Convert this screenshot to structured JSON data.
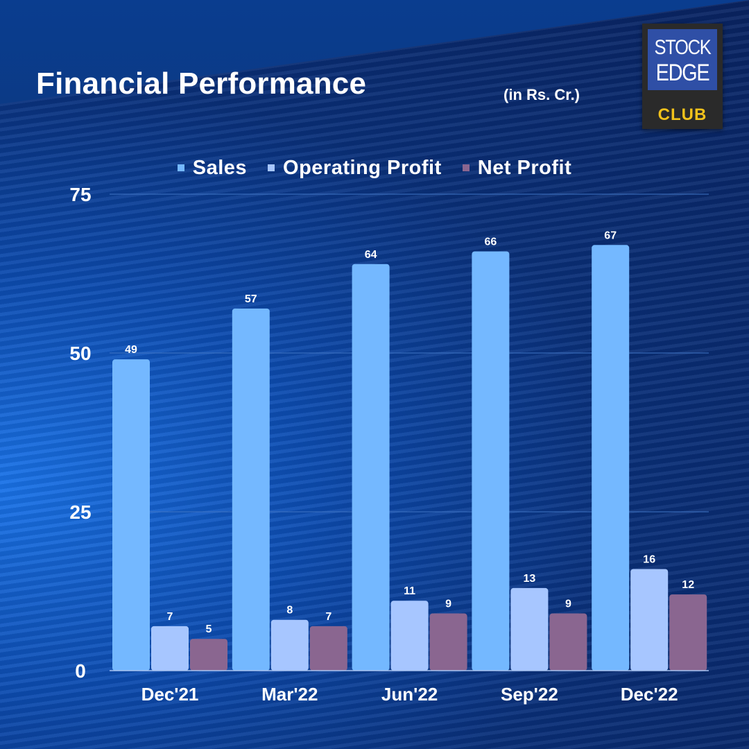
{
  "title": "Financial Performance",
  "unit_note": "(in Rs. Cr.)",
  "logo": {
    "line1": "STOCK",
    "line2": "EDGE",
    "line3": "CLUB"
  },
  "colors": {
    "sales": "#74b8ff",
    "operating_profit": "#a7c6ff",
    "net_profit": "#8a6690",
    "grid": "#3f74c4",
    "axis": "#a9c4f0"
  },
  "chart_data": {
    "type": "bar",
    "title": "Financial Performance",
    "xlabel": "",
    "ylabel": "",
    "categories": [
      "Dec'21",
      "Mar'22",
      "Jun'22",
      "Sep'22",
      "Dec'22"
    ],
    "series": [
      {
        "name": "Sales",
        "color_key": "sales",
        "values": [
          49,
          57,
          64,
          66,
          67
        ]
      },
      {
        "name": "Operating Profit",
        "color_key": "operating_profit",
        "values": [
          7,
          8,
          11,
          13,
          16
        ]
      },
      {
        "name": "Net Profit",
        "color_key": "net_profit",
        "values": [
          5,
          7,
          9,
          9,
          12
        ]
      }
    ],
    "ylim": [
      0,
      75
    ],
    "yticks": [
      0,
      25,
      50,
      75
    ],
    "grid": true,
    "legend": "top-center",
    "data_labels": true
  }
}
